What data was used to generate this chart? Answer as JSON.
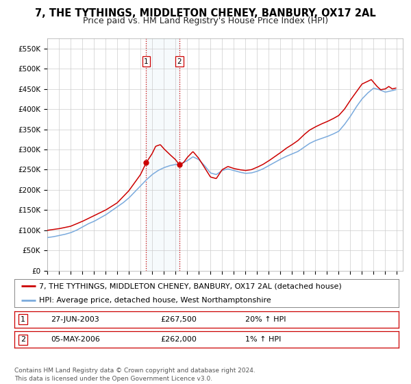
{
  "title": "7, THE TYTHINGS, MIDDLETON CHENEY, BANBURY, OX17 2AL",
  "subtitle": "Price paid vs. HM Land Registry's House Price Index (HPI)",
  "ylim": [
    0,
    575000
  ],
  "yticks": [
    0,
    50000,
    100000,
    150000,
    200000,
    250000,
    300000,
    350000,
    400000,
    450000,
    500000,
    550000
  ],
  "ytick_labels": [
    "£0",
    "£50K",
    "£100K",
    "£150K",
    "£200K",
    "£250K",
    "£300K",
    "£350K",
    "£400K",
    "£450K",
    "£500K",
    "£550K"
  ],
  "xlim_start": 1995.0,
  "xlim_end": 2025.5,
  "xticks": [
    1995,
    1996,
    1997,
    1998,
    1999,
    2000,
    2001,
    2002,
    2003,
    2004,
    2005,
    2006,
    2007,
    2008,
    2009,
    2010,
    2011,
    2012,
    2013,
    2014,
    2015,
    2016,
    2017,
    2018,
    2019,
    2020,
    2021,
    2022,
    2023,
    2024,
    2025
  ],
  "property_color": "#cc0000",
  "hpi_color": "#7aaadd",
  "transaction1_x": 2003.49,
  "transaction1_y": 267500,
  "transaction2_x": 2006.34,
  "transaction2_y": 262000,
  "vline1_x": 2003.49,
  "vline2_x": 2006.34,
  "shade_alpha": 0.15,
  "shade_color": "#c8dff0",
  "legend_label1": "7, THE TYTHINGS, MIDDLETON CHENEY, BANBURY, OX17 2AL (detached house)",
  "legend_label2": "HPI: Average price, detached house, West Northamptonshire",
  "table_row1": [
    "1",
    "27-JUN-2003",
    "£267,500",
    "20% ↑ HPI"
  ],
  "table_row2": [
    "2",
    "05-MAY-2006",
    "£262,000",
    "1% ↑ HPI"
  ],
  "footnote": "Contains HM Land Registry data © Crown copyright and database right 2024.\nThis data is licensed under the Open Government Licence v3.0.",
  "bg_color": "#ffffff",
  "grid_color": "#cccccc",
  "title_fontsize": 10.5,
  "subtitle_fontsize": 9,
  "tick_fontsize": 7.5,
  "legend_fontsize": 8,
  "table_fontsize": 8,
  "footnote_fontsize": 6.5,
  "hpi_anchors_x": [
    1995.0,
    1995.5,
    1996.0,
    1996.5,
    1997.0,
    1997.5,
    1998.0,
    1998.5,
    1999.0,
    1999.5,
    2000.0,
    2000.5,
    2001.0,
    2001.5,
    2002.0,
    2002.5,
    2003.0,
    2003.5,
    2004.0,
    2004.5,
    2005.0,
    2005.5,
    2006.0,
    2006.5,
    2007.0,
    2007.5,
    2008.0,
    2008.5,
    2009.0,
    2009.5,
    2010.0,
    2010.5,
    2011.0,
    2011.5,
    2012.0,
    2012.5,
    2013.0,
    2013.5,
    2014.0,
    2014.5,
    2015.0,
    2015.5,
    2016.0,
    2016.5,
    2017.0,
    2017.5,
    2018.0,
    2018.5,
    2019.0,
    2019.5,
    2020.0,
    2020.5,
    2021.0,
    2021.5,
    2022.0,
    2022.5,
    2023.0,
    2023.5,
    2024.0,
    2024.5,
    2024.9
  ],
  "hpi_anchors_y": [
    82000,
    84000,
    87000,
    90000,
    94000,
    100000,
    108000,
    116000,
    122000,
    130000,
    138000,
    148000,
    158000,
    168000,
    180000,
    195000,
    210000,
    225000,
    238000,
    248000,
    255000,
    260000,
    263000,
    265000,
    272000,
    282000,
    275000,
    260000,
    242000,
    238000,
    248000,
    252000,
    248000,
    244000,
    241000,
    242000,
    246000,
    252000,
    260000,
    268000,
    276000,
    283000,
    289000,
    295000,
    305000,
    315000,
    322000,
    327000,
    332000,
    338000,
    345000,
    362000,
    382000,
    405000,
    425000,
    440000,
    452000,
    448000,
    442000,
    445000,
    448000
  ],
  "prop_anchors_x": [
    1995.0,
    1996.0,
    1997.0,
    1998.0,
    1999.0,
    2000.0,
    2001.0,
    2002.0,
    2002.5,
    2003.0,
    2003.49,
    2004.0,
    2004.3,
    2004.7,
    2005.0,
    2005.5,
    2006.0,
    2006.34,
    2006.7,
    2007.0,
    2007.5,
    2008.0,
    2008.5,
    2009.0,
    2009.5,
    2010.0,
    2010.5,
    2011.0,
    2011.5,
    2012.0,
    2012.5,
    2013.0,
    2013.5,
    2014.0,
    2014.5,
    2015.0,
    2015.5,
    2016.0,
    2016.5,
    2017.0,
    2017.5,
    2018.0,
    2018.5,
    2019.0,
    2019.5,
    2020.0,
    2020.5,
    2021.0,
    2021.5,
    2022.0,
    2022.5,
    2022.8,
    2023.0,
    2023.3,
    2023.6,
    2024.0,
    2024.3,
    2024.6,
    2024.9
  ],
  "prop_anchors_y": [
    100000,
    104000,
    110000,
    122000,
    136000,
    150000,
    168000,
    198000,
    218000,
    238000,
    267500,
    290000,
    308000,
    312000,
    302000,
    288000,
    275000,
    262000,
    268000,
    280000,
    295000,
    278000,
    255000,
    232000,
    228000,
    250000,
    258000,
    253000,
    250000,
    248000,
    250000,
    256000,
    263000,
    272000,
    282000,
    292000,
    303000,
    312000,
    322000,
    336000,
    348000,
    356000,
    363000,
    369000,
    376000,
    384000,
    400000,
    422000,
    442000,
    462000,
    469000,
    473000,
    466000,
    456000,
    448000,
    450000,
    456000,
    450000,
    452000
  ]
}
